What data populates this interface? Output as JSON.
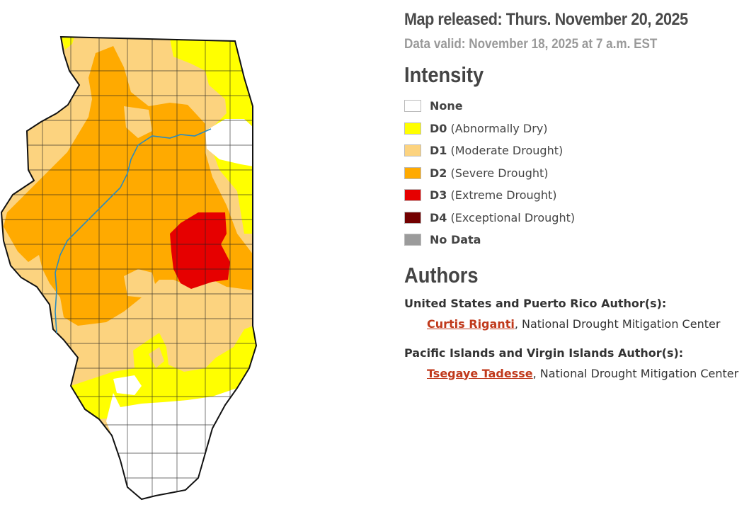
{
  "header": {
    "released": "Map released: Thurs. November 20, 2025",
    "valid": "Data valid: November 18, 2025 at 7 a.m. EST"
  },
  "legend": {
    "title": "Intensity",
    "items": [
      {
        "code": "None",
        "desc": "",
        "color": "#ffffff"
      },
      {
        "code": "D0",
        "desc": " (Abnormally Dry)",
        "color": "#ffff00"
      },
      {
        "code": "D1",
        "desc": " (Moderate Drought)",
        "color": "#fcd37f"
      },
      {
        "code": "D2",
        "desc": " (Severe Drought)",
        "color": "#ffaa00"
      },
      {
        "code": "D3",
        "desc": " (Extreme Drought)",
        "color": "#e60000"
      },
      {
        "code": "D4",
        "desc": " (Exceptional Drought)",
        "color": "#730000"
      },
      {
        "code": "No Data",
        "desc": "",
        "color": "#9b9b9b"
      }
    ]
  },
  "authors": {
    "title": "Authors",
    "groups": [
      {
        "title": "United States and Puerto Rico Author(s):",
        "name": "Curtis Riganti",
        "org": ", National Drought Mitigation Center"
      },
      {
        "title": "Pacific Islands and Virgin Islands Author(s):",
        "name": "Tsegaye Tadesse",
        "org": ", National Drought Mitigation Center"
      }
    ]
  },
  "map": {
    "region_icon": "illinois-state-map",
    "river_color": "#2a8bbf"
  }
}
